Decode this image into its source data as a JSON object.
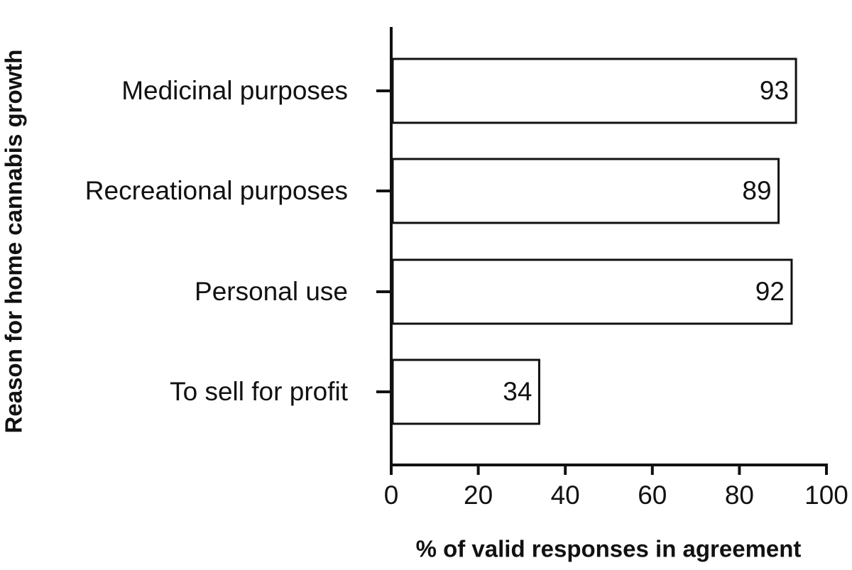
{
  "chart_data": {
    "type": "bar",
    "orientation": "horizontal",
    "categories": [
      "Medicinal purposes",
      "Recreational purposes",
      "Personal use",
      "To sell for profit"
    ],
    "values": [
      93,
      89,
      92,
      34
    ],
    "color": "#ffffff",
    "xlim": [
      0,
      100
    ],
    "xticks": [
      0,
      20,
      40,
      60,
      80,
      100
    ],
    "xlabel": "% of valid responses in agreement",
    "ylabel": "Reason for home cannabis growth"
  }
}
